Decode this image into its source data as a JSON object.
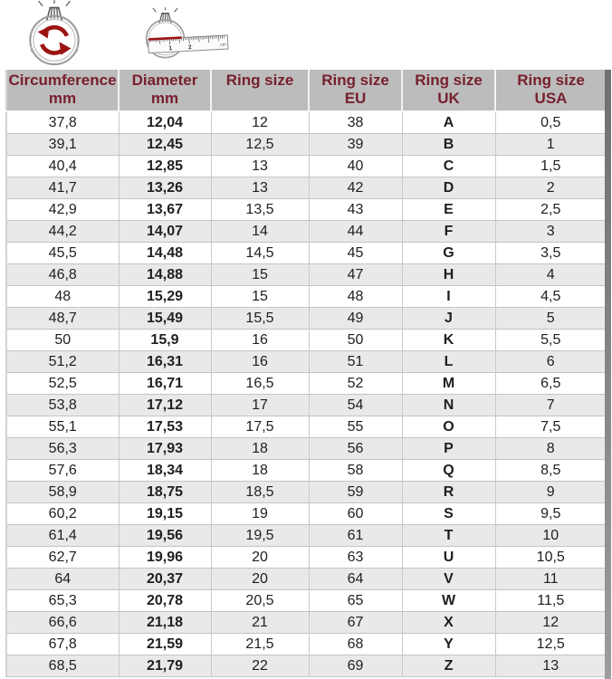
{
  "colors": {
    "accent_red": "#9b1414",
    "header_bg": "#bdbcbc",
    "header_text": "#76202e",
    "row_alt": "#e9e9e9",
    "row_bg": "#ffffff",
    "grid": "#c9c9c9",
    "text": "#1f1f1f",
    "shadow": "#7d7d7d"
  },
  "icons": {
    "circumference_icon": "ring-with-rotation-arrows",
    "diameter_icon": "ring-with-ruler",
    "ruler_label_1": "1",
    "ruler_label_2": "2",
    "ruler_label_cm": "cm"
  },
  "chart_data": {
    "type": "table",
    "headers": [
      {
        "top": "Circumference",
        "bottom": "mm"
      },
      {
        "top": "Diameter",
        "bottom": "mm"
      },
      {
        "top": "Ring size",
        "bottom": ""
      },
      {
        "top": "Ring size",
        "bottom": "EU"
      },
      {
        "top": "Ring size",
        "bottom": "UK"
      },
      {
        "top": "Ring size",
        "bottom": "USA"
      }
    ],
    "columns": [
      "Circumference mm",
      "Diameter mm",
      "Ring size",
      "Ring size EU",
      "Ring size UK",
      "Ring size USA"
    ],
    "rows": [
      [
        "37,8",
        "12,04",
        "12",
        "38",
        "A",
        "0,5"
      ],
      [
        "39,1",
        "12,45",
        "12,5",
        "39",
        "B",
        "1"
      ],
      [
        "40,4",
        "12,85",
        "13",
        "40",
        "C",
        "1,5"
      ],
      [
        "41,7",
        "13,26",
        "13",
        "42",
        "D",
        "2"
      ],
      [
        "42,9",
        "13,67",
        "13,5",
        "43",
        "E",
        "2,5"
      ],
      [
        "44,2",
        "14,07",
        "14",
        "44",
        "F",
        "3"
      ],
      [
        "45,5",
        "14,48",
        "14,5",
        "45",
        "G",
        "3,5"
      ],
      [
        "46,8",
        "14,88",
        "15",
        "47",
        "H",
        "4"
      ],
      [
        "48",
        "15,29",
        "15",
        "48",
        "I",
        "4,5"
      ],
      [
        "48,7",
        "15,49",
        "15,5",
        "49",
        "J",
        "5"
      ],
      [
        "50",
        "15,9",
        "16",
        "50",
        "K",
        "5,5"
      ],
      [
        "51,2",
        "16,31",
        "16",
        "51",
        "L",
        "6"
      ],
      [
        "52,5",
        "16,71",
        "16,5",
        "52",
        "M",
        "6,5"
      ],
      [
        "53,8",
        "17,12",
        "17",
        "54",
        "N",
        "7"
      ],
      [
        "55,1",
        "17,53",
        "17,5",
        "55",
        "O",
        "7,5"
      ],
      [
        "56,3",
        "17,93",
        "18",
        "56",
        "P",
        "8"
      ],
      [
        "57,6",
        "18,34",
        "18",
        "58",
        "Q",
        "8,5"
      ],
      [
        "58,9",
        "18,75",
        "18,5",
        "59",
        "R",
        "9"
      ],
      [
        "60,2",
        "19,15",
        "19",
        "60",
        "S",
        "9,5"
      ],
      [
        "61,4",
        "19,56",
        "19,5",
        "61",
        "T",
        "10"
      ],
      [
        "62,7",
        "19,96",
        "20",
        "63",
        "U",
        "10,5"
      ],
      [
        "64",
        "20,37",
        "20",
        "64",
        "V",
        "11"
      ],
      [
        "65,3",
        "20,78",
        "20,5",
        "65",
        "W",
        "11,5"
      ],
      [
        "66,6",
        "21,18",
        "21",
        "67",
        "X",
        "12"
      ],
      [
        "67,8",
        "21,59",
        "21,5",
        "68",
        "Y",
        "12,5"
      ],
      [
        "68,5",
        "21,79",
        "22",
        "69",
        "Z",
        "13"
      ]
    ]
  }
}
